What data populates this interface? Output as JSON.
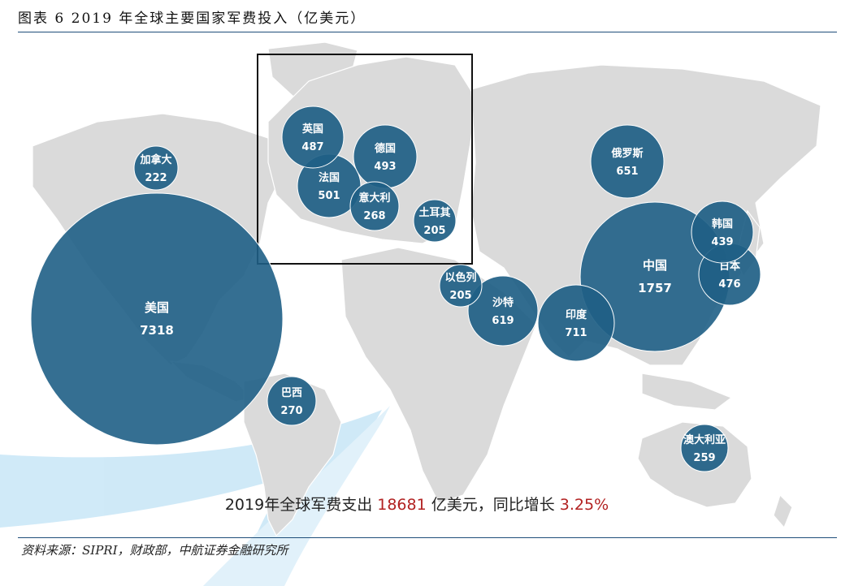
{
  "title": "图表 6 2019 年全球主要国家军费投入（亿美元）",
  "source": "资料来源：SIPRI，财政部，中航证券金融研究所",
  "summary": {
    "prefix": "2019年全球军费支出 ",
    "total": "18681",
    "middle": " 亿美元，同比增长 ",
    "growth": "3.25%"
  },
  "colors": {
    "bubble": "#1f5f86",
    "land": "#dadada",
    "highlight": "#b22222",
    "rule": "#1f4e79",
    "watermark": "#9fd1ee"
  },
  "countries": [
    {
      "id": "usa",
      "name": "美国",
      "value": "7318"
    },
    {
      "id": "china",
      "name": "中国",
      "value": "1757"
    },
    {
      "id": "india",
      "name": "印度",
      "value": "711"
    },
    {
      "id": "russia",
      "name": "俄罗斯",
      "value": "651"
    },
    {
      "id": "saudi",
      "name": "沙特",
      "value": "619"
    },
    {
      "id": "france",
      "name": "法国",
      "value": "501"
    },
    {
      "id": "germany",
      "name": "德国",
      "value": "493"
    },
    {
      "id": "uk",
      "name": "英国",
      "value": "487"
    },
    {
      "id": "japan",
      "name": "日本",
      "value": "476"
    },
    {
      "id": "korea",
      "name": "韩国",
      "value": "439"
    },
    {
      "id": "brazil",
      "name": "巴西",
      "value": "270"
    },
    {
      "id": "italy",
      "name": "意大利",
      "value": "268"
    },
    {
      "id": "australia",
      "name": "澳大利亚",
      "value": "259"
    },
    {
      "id": "canada",
      "name": "加拿大",
      "value": "222"
    },
    {
      "id": "turkey",
      "name": "土耳其",
      "value": "205"
    },
    {
      "id": "israel",
      "name": "以色列",
      "value": "205"
    }
  ]
}
